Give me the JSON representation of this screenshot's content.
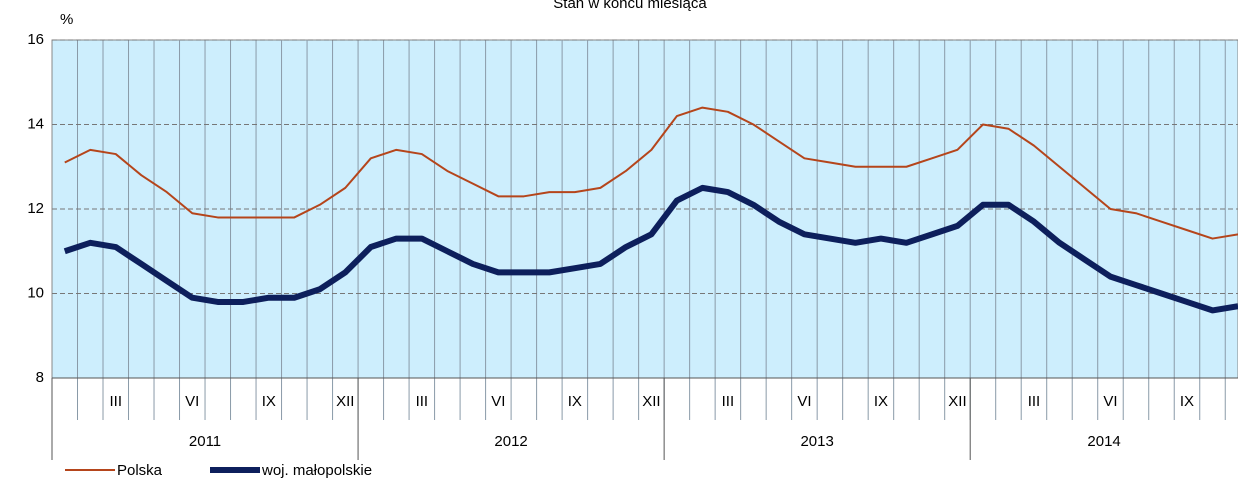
{
  "chart_data": {
    "type": "line",
    "title": "Stan w końcu miesiąca",
    "y_label": "%",
    "categories": [
      null,
      null,
      "III",
      null,
      null,
      "VI",
      null,
      null,
      "IX",
      null,
      null,
      "XII",
      null,
      null,
      "III",
      null,
      null,
      "VI",
      null,
      null,
      "IX",
      null,
      null,
      "XII",
      null,
      null,
      "III",
      null,
      null,
      "VI",
      null,
      null,
      "IX",
      null,
      null,
      "XII",
      null,
      null,
      "III",
      null,
      null,
      "VI",
      null,
      null,
      "IX",
      null,
      null
    ],
    "years": [
      "2011",
      "2012",
      "2013",
      "2014"
    ],
    "series": [
      {
        "name": "Polska",
        "color": "#b5451b",
        "values": [
          13.1,
          13.4,
          13.3,
          12.8,
          12.4,
          11.9,
          11.8,
          11.8,
          11.8,
          11.8,
          12.1,
          12.5,
          13.2,
          13.4,
          13.3,
          12.9,
          12.6,
          12.3,
          12.3,
          12.4,
          12.4,
          12.5,
          12.9,
          13.4,
          14.2,
          14.4,
          14.3,
          14.0,
          13.6,
          13.2,
          13.1,
          13.0,
          13.0,
          13.0,
          13.2,
          13.4,
          14.0,
          13.9,
          13.5,
          13.0,
          12.5,
          12.0,
          11.9,
          11.7,
          11.5,
          11.3,
          11.4
        ]
      },
      {
        "name": "woj. małopolskie",
        "color": "#0d1f5c",
        "values": [
          11.0,
          11.2,
          11.1,
          10.7,
          10.3,
          9.9,
          9.8,
          9.8,
          9.9,
          9.9,
          10.1,
          10.5,
          11.1,
          11.3,
          11.3,
          11.0,
          10.7,
          10.5,
          10.5,
          10.5,
          10.6,
          10.7,
          11.1,
          11.4,
          12.2,
          12.5,
          12.4,
          12.1,
          11.7,
          11.4,
          11.3,
          11.2,
          11.3,
          11.2,
          11.4,
          11.6,
          12.1,
          12.1,
          11.7,
          11.2,
          10.8,
          10.4,
          10.2,
          10.0,
          9.8,
          9.6,
          9.7
        ]
      }
    ],
    "ylim": [
      8,
      16
    ],
    "yticks": [
      8,
      10,
      12,
      14,
      16
    ],
    "grid": true
  }
}
